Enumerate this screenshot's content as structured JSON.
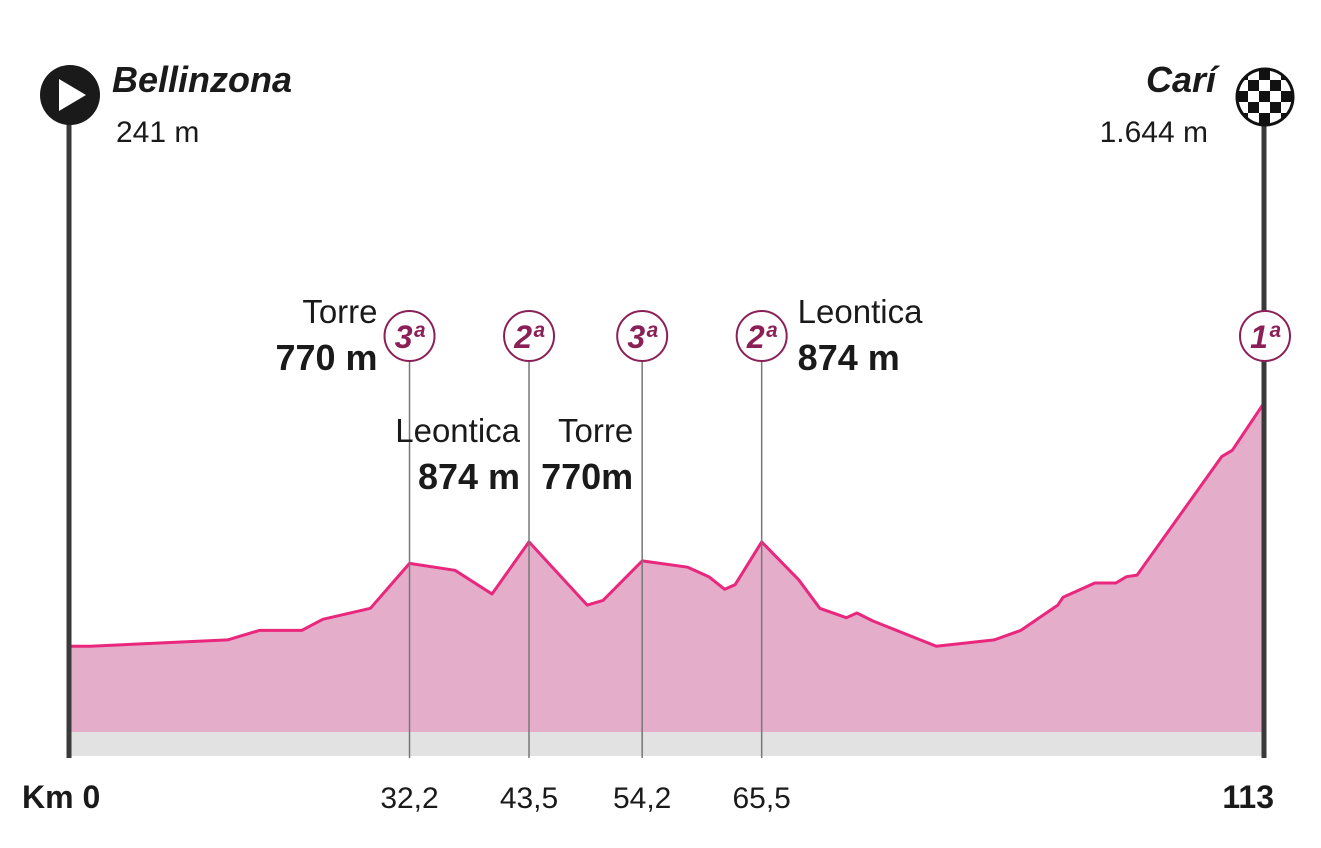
{
  "colors": {
    "profile_fill": "#e4aecb",
    "profile_line": "#e8277d",
    "base_band": "#e2e2e2",
    "category": "#8b2057",
    "pole": "#3a3a3a"
  },
  "icons": {
    "start": "start-play-icon",
    "finish": "finish-checkered-flag-icon"
  },
  "start": {
    "name": "Bellinzona",
    "altitude": "241 m"
  },
  "finish": {
    "name": "Carí",
    "altitude": "1.644 m",
    "category": "1ª"
  },
  "km_start_label": "Km 0",
  "km_end_label": "113",
  "climbs": [
    {
      "name": "Torre",
      "altitude": "770 m",
      "category": "3ª",
      "km_label": "32,2",
      "km": 32.2
    },
    {
      "name": "Leontica",
      "altitude": "874 m",
      "category": "2ª",
      "km_label": "43,5",
      "km": 43.5
    },
    {
      "name": "Torre",
      "altitude": "770m",
      "category": "3ª",
      "km_label": "54,2",
      "km": 54.2
    },
    {
      "name": "Leontica",
      "altitude": "874 m",
      "category": "2ª",
      "km_label": "65,5",
      "km": 65.5
    }
  ],
  "chart_data": {
    "type": "area",
    "xlim": [
      0,
      113
    ],
    "x": [
      0,
      2,
      15,
      18,
      22,
      24,
      28.5,
      32.2,
      36.5,
      40,
      43.5,
      49,
      50.5,
      54.2,
      58.5,
      60.5,
      62,
      63,
      65.5,
      69,
      71,
      73.5,
      74.5,
      76,
      80.5,
      82,
      87.5,
      90,
      93.5,
      94,
      97,
      99,
      100,
      101,
      109,
      110,
      113
    ],
    "y": [
      270,
      270,
      290,
      320,
      320,
      355,
      390,
      532,
      510,
      435,
      600,
      400,
      415,
      540,
      520,
      490,
      450,
      465,
      600,
      480,
      390,
      360,
      375,
      350,
      290,
      270,
      290,
      320,
      400,
      425,
      470,
      470,
      490,
      495,
      870,
      890,
      1040
    ]
  }
}
